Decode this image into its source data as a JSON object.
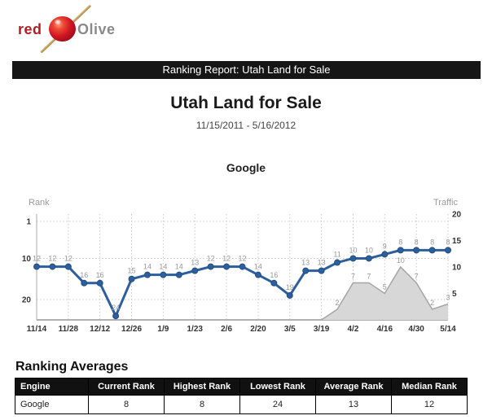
{
  "logo": {
    "red": "red",
    "olive": "Olive"
  },
  "banner": {
    "title": "Ranking Report: Utah Land for Sale"
  },
  "report": {
    "title": "Utah Land for Sale",
    "date_range": "11/15/2011 - 5/16/2012",
    "engine_heading": "Google"
  },
  "chart_data": {
    "type": "line",
    "title": "Google",
    "left_axis": {
      "label": "Rank",
      "ticks": [
        1,
        10,
        20
      ],
      "inverted": true
    },
    "right_axis": {
      "label": "Traffic",
      "ticks": [
        20,
        15,
        10,
        5
      ],
      "range": [
        0,
        20
      ]
    },
    "x_tick_labels": [
      "11/14",
      "11/28",
      "12/12",
      "12/26",
      "1/9",
      "1/23",
      "2/6",
      "2/20",
      "3/5",
      "3/19",
      "4/2",
      "4/16",
      "4/30",
      "5/14"
    ],
    "series": [
      {
        "name": "Rank",
        "type": "line",
        "values": [
          12,
          12,
          12,
          16,
          16,
          24,
          15,
          14,
          14,
          14,
          13,
          12,
          12,
          12,
          14,
          16,
          19,
          13,
          13,
          11,
          10,
          10,
          9,
          8,
          8,
          8,
          8
        ]
      },
      {
        "name": "Traffic",
        "type": "area",
        "values": [
          0,
          0,
          0,
          0,
          0,
          0,
          0,
          0,
          0,
          0,
          0,
          0,
          0,
          0,
          0,
          0,
          0,
          0,
          0,
          2,
          7,
          7,
          5,
          10,
          7,
          2,
          3
        ]
      }
    ],
    "style": {
      "line_color": "#2d5f9e",
      "marker_stroke": "#24507f",
      "area_fill": "#d7d7d7",
      "area_stroke": "#a5a5a5",
      "label_color": "#999999",
      "grid_color": "#c8c8c8",
      "axis_color": "#aaaaaa",
      "tick_color": "#333333"
    }
  },
  "averages": {
    "heading": "Ranking Averages",
    "headers": [
      "Engine",
      "Current Rank",
      "Highest Rank",
      "Lowest Rank",
      "Average Rank",
      "Median Rank"
    ],
    "rows": [
      [
        "Google",
        "8",
        "8",
        "24",
        "13",
        "12"
      ]
    ]
  }
}
